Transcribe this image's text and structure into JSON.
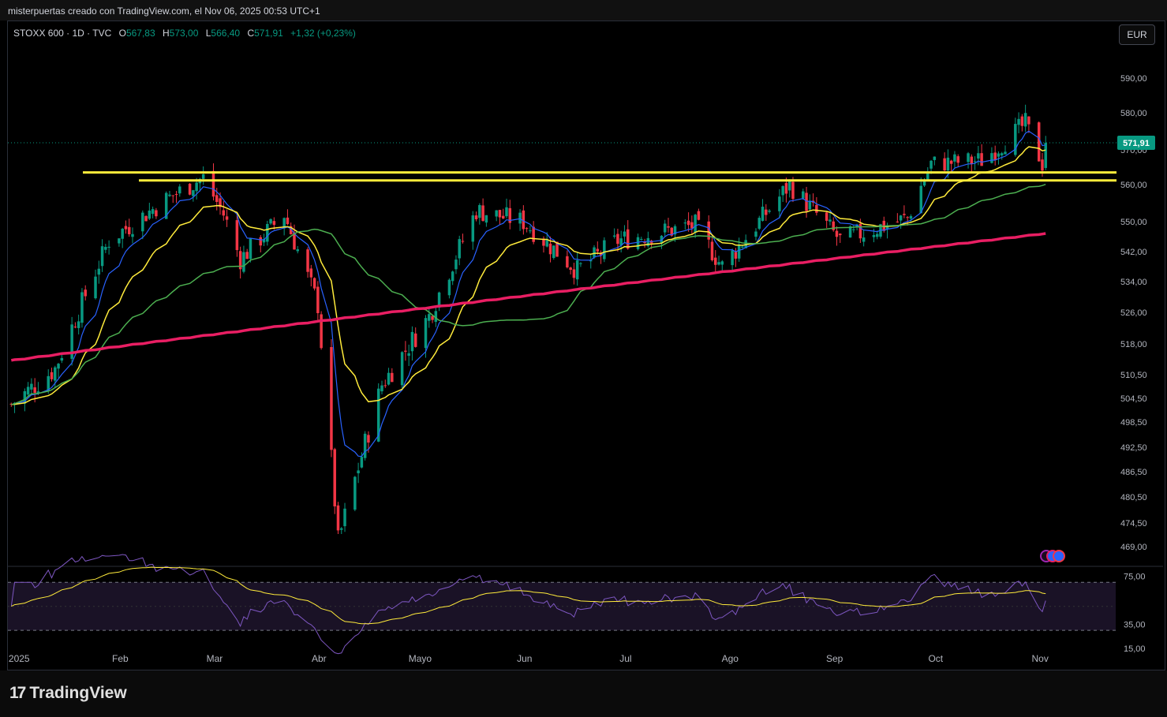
{
  "header": {
    "caption": "misterpuertas creado con TradingView.com, el Nov 06, 2025 00:53 UTC+1"
  },
  "legend": {
    "symbol": "STOXX 600 · 1D · TVC",
    "o_label": "O",
    "o": "567,83",
    "h_label": "H",
    "h": "573,00",
    "l_label": "L",
    "l": "566,40",
    "c_label": "C",
    "c": "571,91",
    "change": "+1,32 (+0,23%)"
  },
  "currency_button": "EUR",
  "last_price_label": "571,91",
  "footer": {
    "brand": "TradingView"
  },
  "colors": {
    "up": "#089981",
    "down": "#f23645",
    "ema_blue": "#2962ff",
    "ema_yellow": "#ffeb3b",
    "sma_green": "#4caf50",
    "sma_pink": "#e91e63",
    "level_line": "#ffeb3b",
    "rsi": "#7e57c2"
  },
  "chart_data": [
    {
      "type": "candlestick",
      "title": "STOXX 600 · 1D · TVC",
      "x_ticks": [
        "2025",
        "Feb",
        "Mar",
        "Abr",
        "Mayo",
        "Jun",
        "Jul",
        "Ago",
        "Sep",
        "Oct",
        "Nov"
      ],
      "y_ticks": [
        "590,00",
        "580,00",
        "570,00",
        "560,00",
        "550,00",
        "542,00",
        "534,00",
        "526,00",
        "518,00",
        "510,50",
        "504,50",
        "498,50",
        "492,50",
        "486,50",
        "480,50",
        "474,50",
        "469,00"
      ],
      "ylim": [
        465,
        598
      ],
      "last_price": 571.91,
      "horizontal_levels": [
        563.5,
        561.2
      ],
      "monthly_path": [
        {
          "x": "2025-01-02",
          "close": 503
        },
        {
          "x": "2025-01-15",
          "close": 512
        },
        {
          "x": "2025-01-31",
          "close": 545
        },
        {
          "x": "2025-02-17",
          "close": 556
        },
        {
          "x": "2025-02-28",
          "close": 562
        },
        {
          "x": "2025-03-06",
          "close": 552
        },
        {
          "x": "2025-03-11",
          "close": 540
        },
        {
          "x": "2025-03-24",
          "close": 552
        },
        {
          "x": "2025-04-03",
          "close": 528
        },
        {
          "x": "2025-04-09",
          "close": 470
        },
        {
          "x": "2025-04-22",
          "close": 508
        },
        {
          "x": "2025-05-06",
          "close": 525
        },
        {
          "x": "2025-05-20",
          "close": 553
        },
        {
          "x": "2025-06-03",
          "close": 550
        },
        {
          "x": "2025-06-19",
          "close": 537
        },
        {
          "x": "2025-07-01",
          "close": 545
        },
        {
          "x": "2025-07-24",
          "close": 549
        },
        {
          "x": "2025-08-01",
          "close": 538
        },
        {
          "x": "2025-08-21",
          "close": 560
        },
        {
          "x": "2025-09-05",
          "close": 545
        },
        {
          "x": "2025-09-25",
          "close": 551
        },
        {
          "x": "2025-10-02",
          "close": 566
        },
        {
          "x": "2025-10-17",
          "close": 567
        },
        {
          "x": "2025-10-30",
          "close": 577
        },
        {
          "x": "2025-11-04",
          "close": 566
        },
        {
          "x": "2025-11-05",
          "close": 571.91
        }
      ]
    },
    {
      "type": "line",
      "title": "RSI",
      "y_ticks": [
        "75,00",
        "35,00",
        "15,00"
      ],
      "ylim": [
        15,
        82
      ],
      "bands": [
        70,
        30
      ]
    }
  ]
}
